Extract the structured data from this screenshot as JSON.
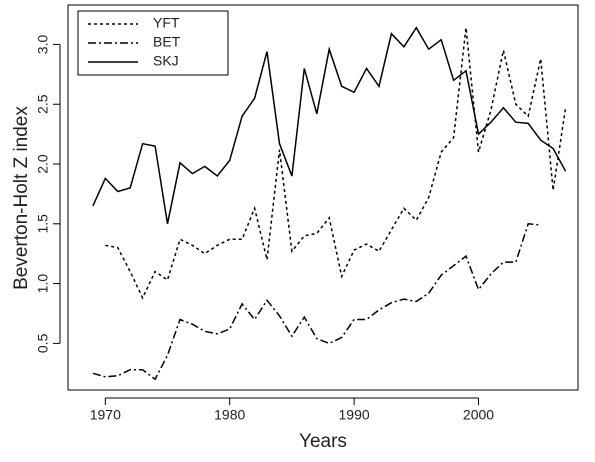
{
  "chart_data": {
    "type": "line",
    "xlabel": "Years",
    "ylabel": "Beverton-Holt Z index",
    "x": [
      1969,
      1970,
      1971,
      1972,
      1973,
      1974,
      1975,
      1976,
      1977,
      1978,
      1979,
      1980,
      1981,
      1982,
      1983,
      1984,
      1985,
      1986,
      1987,
      1988,
      1989,
      1990,
      1991,
      1992,
      1993,
      1994,
      1995,
      1996,
      1997,
      1998,
      1999,
      2000,
      2001,
      2002,
      2003,
      2004,
      2005,
      2006,
      2007
    ],
    "series": [
      {
        "name": "YFT",
        "color": "#000000",
        "linestyle": "dotted",
        "values": [
          null,
          1.32,
          1.3,
          1.1,
          0.88,
          1.1,
          1.03,
          1.37,
          1.32,
          1.25,
          1.32,
          1.37,
          1.37,
          1.63,
          1.2,
          2.12,
          1.27,
          1.4,
          1.42,
          1.55,
          1.06,
          1.28,
          1.33,
          1.27,
          1.45,
          1.63,
          1.53,
          1.72,
          2.1,
          2.22,
          3.14,
          2.1,
          2.45,
          2.95,
          2.5,
          2.4,
          2.88,
          1.78,
          2.47
        ]
      },
      {
        "name": "BET",
        "color": "#000000",
        "linestyle": "dashdot",
        "values": [
          0.25,
          0.22,
          0.23,
          0.28,
          0.28,
          0.2,
          0.4,
          0.7,
          0.66,
          0.6,
          0.58,
          0.62,
          0.83,
          0.7,
          0.86,
          0.73,
          0.56,
          0.72,
          0.54,
          0.5,
          0.55,
          0.7,
          0.7,
          0.78,
          0.84,
          0.87,
          0.85,
          0.92,
          1.07,
          1.15,
          1.23,
          0.95,
          1.08,
          1.18,
          1.18,
          1.5,
          1.49,
          null,
          null
        ]
      },
      {
        "name": "SKJ",
        "color": "#000000",
        "linestyle": "solid",
        "values": [
          1.65,
          1.88,
          1.77,
          1.8,
          2.17,
          2.15,
          1.5,
          2.01,
          1.92,
          1.98,
          1.9,
          2.03,
          2.4,
          2.55,
          2.94,
          2.17,
          1.9,
          2.8,
          2.42,
          2.96,
          2.65,
          2.6,
          2.8,
          2.65,
          3.09,
          2.98,
          3.14,
          2.96,
          3.04,
          2.7,
          2.78,
          2.25,
          2.35,
          2.47,
          2.35,
          2.34,
          2.2,
          2.13,
          1.94
        ]
      }
    ],
    "xlim": [
      1967,
      2008
    ],
    "xticks": [
      1970,
      1980,
      1990,
      2000
    ],
    "ylim": [
      0.11,
      3.33
    ],
    "yticks": [
      0.5,
      {
        "value": 1,
        "label": "1.0"
      },
      1.5,
      {
        "value": 2,
        "label": "2.0"
      },
      2.5,
      {
        "value": 3,
        "label": "3.0"
      }
    ],
    "legend": "top-left"
  }
}
